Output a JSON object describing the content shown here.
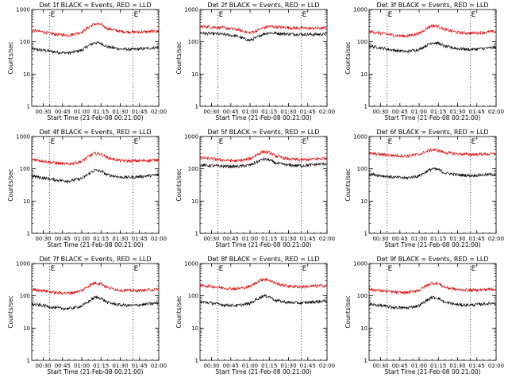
{
  "figure": {
    "background": "#ffffff",
    "series_colors": {
      "events": "#000000",
      "lld": "#dd0000"
    }
  },
  "chart_data": [
    {
      "type": "line",
      "title": "Det 1f BLACK = Events, RED = LLD",
      "xlabel": "Start Time (21-Feb-08 00:21:00)",
      "ylabel": "Counts/sec",
      "yscale": "log",
      "ylim": [
        1,
        1000
      ],
      "yticks": [
        "1",
        "10",
        "100",
        "1000"
      ],
      "xlim": [
        "00:21",
        "02:00"
      ],
      "xticks": [
        "00:30",
        "00:45",
        "01:00",
        "01:15",
        "01:30",
        "01:45",
        "02:00"
      ],
      "markers": [
        {
          "time": "00:35",
          "label": "E"
        },
        {
          "time": "01:40",
          "label": "E"
        }
      ],
      "series": [
        {
          "name": "Events",
          "color": "#000000",
          "x": [
            "00:21",
            "00:30",
            "00:40",
            "00:50",
            "01:00",
            "01:05",
            "01:10",
            "01:15",
            "01:20",
            "01:30",
            "01:40",
            "01:50",
            "02:00"
          ],
          "y": [
            60,
            55,
            48,
            45,
            55,
            75,
            95,
            90,
            70,
            60,
            58,
            62,
            68
          ]
        },
        {
          "name": "LLD",
          "color": "#dd0000",
          "x": [
            "00:21",
            "00:30",
            "00:40",
            "00:50",
            "01:00",
            "01:05",
            "01:10",
            "01:15",
            "01:20",
            "01:30",
            "01:40",
            "01:50",
            "02:00"
          ],
          "y": [
            230,
            200,
            170,
            160,
            200,
            280,
            360,
            340,
            260,
            210,
            200,
            205,
            215
          ]
        }
      ]
    },
    {
      "type": "line",
      "title": "Det 2f BLACK = Events, RED = LLD",
      "xlabel": "Start Time (21-Feb-08 00:21:00)",
      "ylabel": "Counts/sec",
      "yscale": "log",
      "ylim": [
        1,
        1000
      ],
      "yticks": [
        "1",
        "10",
        "100",
        "1000"
      ],
      "xlim": [
        "00:21",
        "02:00"
      ],
      "xticks": [
        "00:30",
        "00:45",
        "01:00",
        "01:15",
        "01:30",
        "01:45",
        "02:00"
      ],
      "markers": [
        {
          "time": "00:35",
          "label": "E"
        },
        {
          "time": "01:40",
          "label": "E"
        }
      ],
      "series": [
        {
          "name": "Events",
          "color": "#000000",
          "x": [
            "00:21",
            "00:30",
            "00:40",
            "00:50",
            "00:55",
            "01:00",
            "01:05",
            "01:10",
            "01:15",
            "01:20",
            "01:30",
            "01:40",
            "01:50",
            "02:00"
          ],
          "y": [
            185,
            180,
            170,
            150,
            125,
            110,
            135,
            175,
            190,
            185,
            175,
            170,
            170,
            172
          ]
        },
        {
          "name": "LLD",
          "color": "#dd0000",
          "x": [
            "00:21",
            "00:30",
            "00:40",
            "00:50",
            "00:55",
            "01:00",
            "01:05",
            "01:10",
            "01:15",
            "01:20",
            "01:30",
            "01:40",
            "01:50",
            "02:00"
          ],
          "y": [
            300,
            290,
            270,
            240,
            210,
            190,
            220,
            270,
            300,
            290,
            275,
            265,
            262,
            265
          ]
        }
      ]
    },
    {
      "type": "line",
      "title": "Det 3f BLACK = Events, RED = LLD",
      "xlabel": "Start Time (21-Feb-08 00:21:00)",
      "ylabel": "Counts/sec",
      "yscale": "log",
      "ylim": [
        1,
        1000
      ],
      "yticks": [
        "1",
        "10",
        "100",
        "1000"
      ],
      "xlim": [
        "00:21",
        "02:00"
      ],
      "xticks": [
        "00:30",
        "00:45",
        "01:00",
        "01:15",
        "01:30",
        "01:45",
        "02:00"
      ],
      "markers": [
        {
          "time": "00:35",
          "label": "E"
        },
        {
          "time": "01:40",
          "label": "E"
        }
      ],
      "series": [
        {
          "name": "Events",
          "color": "#000000",
          "x": [
            "00:21",
            "00:30",
            "00:40",
            "00:50",
            "01:00",
            "01:05",
            "01:10",
            "01:15",
            "01:20",
            "01:30",
            "01:40",
            "01:50",
            "02:00"
          ],
          "y": [
            75,
            65,
            55,
            50,
            58,
            75,
            95,
            90,
            72,
            62,
            58,
            62,
            68
          ]
        },
        {
          "name": "LLD",
          "color": "#dd0000",
          "x": [
            "00:21",
            "00:30",
            "00:40",
            "00:50",
            "01:00",
            "01:05",
            "01:10",
            "01:15",
            "01:20",
            "01:30",
            "01:40",
            "01:50",
            "02:00"
          ],
          "y": [
            210,
            185,
            160,
            150,
            180,
            250,
            320,
            300,
            240,
            195,
            185,
            195,
            210
          ]
        }
      ]
    },
    {
      "type": "line",
      "title": "Det 4f BLACK = Events, RED = LLD",
      "xlabel": "Start Time (21-Feb-08 00:21:00)",
      "ylabel": "Counts/sec",
      "yscale": "log",
      "ylim": [
        1,
        1000
      ],
      "yticks": [
        "1",
        "10",
        "100",
        "1000"
      ],
      "xlim": [
        "00:21",
        "02:00"
      ],
      "xticks": [
        "00:30",
        "00:45",
        "01:00",
        "01:15",
        "01:30",
        "01:45",
        "02:00"
      ],
      "markers": [
        {
          "time": "00:35",
          "label": "E"
        },
        {
          "time": "01:40",
          "label": "E"
        }
      ],
      "series": [
        {
          "name": "Events",
          "color": "#000000",
          "x": [
            "00:21",
            "00:30",
            "00:40",
            "00:50",
            "01:00",
            "01:05",
            "01:10",
            "01:15",
            "01:20",
            "01:30",
            "01:40",
            "01:50",
            "02:00"
          ],
          "y": [
            60,
            52,
            45,
            42,
            50,
            68,
            90,
            85,
            65,
            55,
            55,
            60,
            65
          ]
        },
        {
          "name": "LLD",
          "color": "#dd0000",
          "x": [
            "00:21",
            "00:30",
            "00:40",
            "00:50",
            "01:00",
            "01:05",
            "01:10",
            "01:15",
            "01:20",
            "01:30",
            "01:40",
            "01:50",
            "02:00"
          ],
          "y": [
            200,
            175,
            150,
            140,
            170,
            240,
            300,
            290,
            220,
            180,
            175,
            180,
            190
          ]
        }
      ]
    },
    {
      "type": "line",
      "title": "Det 5f BLACK = Events, RED = LLD",
      "xlabel": "Start Time (21-Feb-08 00:21:00)",
      "ylabel": "Counts/sec",
      "yscale": "log",
      "ylim": [
        1,
        1000
      ],
      "yticks": [
        "1",
        "10",
        "100",
        "1000"
      ],
      "xlim": [
        "00:21",
        "02:00"
      ],
      "xticks": [
        "00:30",
        "00:45",
        "01:00",
        "01:15",
        "01:30",
        "01:45",
        "02:00"
      ],
      "markers": [
        {
          "time": "00:35",
          "label": "E"
        },
        {
          "time": "01:40",
          "label": "E"
        }
      ],
      "series": [
        {
          "name": "Events",
          "color": "#000000",
          "x": [
            "00:21",
            "00:30",
            "00:40",
            "00:50",
            "01:00",
            "01:05",
            "01:10",
            "01:15",
            "01:20",
            "01:30",
            "01:40",
            "01:50",
            "02:00"
          ],
          "y": [
            130,
            125,
            120,
            118,
            130,
            160,
            200,
            190,
            150,
            130,
            125,
            135,
            145
          ]
        },
        {
          "name": "LLD",
          "color": "#dd0000",
          "x": [
            "00:21",
            "00:30",
            "00:40",
            "00:50",
            "01:00",
            "01:05",
            "01:10",
            "01:15",
            "01:20",
            "01:30",
            "01:40",
            "01:50",
            "02:00"
          ],
          "y": [
            220,
            205,
            185,
            175,
            205,
            270,
            340,
            320,
            250,
            200,
            190,
            200,
            215
          ]
        }
      ]
    },
    {
      "type": "line",
      "title": "Det 6f BLACK = Events, RED = LLD",
      "xlabel": "Start Time (21-Feb-08 00:21:00)",
      "ylabel": "Counts/sec",
      "yscale": "log",
      "ylim": [
        1,
        1000
      ],
      "yticks": [
        "1",
        "10",
        "100",
        "1000"
      ],
      "xlim": [
        "00:21",
        "02:00"
      ],
      "xticks": [
        "00:30",
        "00:45",
        "01:00",
        "01:15",
        "01:30",
        "01:45",
        "02:00"
      ],
      "markers": [
        {
          "time": "00:35",
          "label": "E"
        },
        {
          "time": "01:40",
          "label": "E"
        }
      ],
      "series": [
        {
          "name": "Events",
          "color": "#000000",
          "x": [
            "00:21",
            "00:30",
            "00:40",
            "00:50",
            "01:00",
            "01:05",
            "01:10",
            "01:15",
            "01:20",
            "01:30",
            "01:40",
            "01:50",
            "02:00"
          ],
          "y": [
            70,
            62,
            55,
            52,
            60,
            80,
            100,
            95,
            75,
            65,
            62,
            65,
            68
          ]
        },
        {
          "name": "LLD",
          "color": "#dd0000",
          "x": [
            "00:21",
            "00:30",
            "00:40",
            "00:50",
            "01:00",
            "01:05",
            "01:10",
            "01:15",
            "01:20",
            "01:30",
            "01:40",
            "01:50",
            "02:00"
          ],
          "y": [
            300,
            280,
            260,
            250,
            280,
            340,
            390,
            370,
            320,
            290,
            280,
            285,
            290
          ]
        }
      ]
    },
    {
      "type": "line",
      "title": "Det 7f BLACK = Events, RED = LLD",
      "xlabel": "Start Time (21-Feb-08 00:21:00)",
      "ylabel": "Counts/sec",
      "yscale": "log",
      "ylim": [
        1,
        1000
      ],
      "yticks": [
        "1",
        "10",
        "100",
        "1000"
      ],
      "xlim": [
        "00:21",
        "02:00"
      ],
      "xticks": [
        "00:30",
        "00:45",
        "01:00",
        "01:15",
        "01:30",
        "01:45",
        "02:00"
      ],
      "markers": [
        {
          "time": "00:35",
          "label": "E"
        },
        {
          "time": "01:40",
          "label": "E"
        }
      ],
      "series": [
        {
          "name": "Events",
          "color": "#000000",
          "x": [
            "00:21",
            "00:30",
            "00:40",
            "00:50",
            "01:00",
            "01:05",
            "01:10",
            "01:15",
            "01:20",
            "01:30",
            "01:40",
            "01:50",
            "02:00"
          ],
          "y": [
            55,
            50,
            42,
            40,
            48,
            65,
            90,
            85,
            62,
            52,
            50,
            55,
            60
          ]
        },
        {
          "name": "LLD",
          "color": "#dd0000",
          "x": [
            "00:21",
            "00:30",
            "00:40",
            "00:50",
            "01:00",
            "01:05",
            "01:10",
            "01:15",
            "01:20",
            "01:30",
            "01:40",
            "01:50",
            "02:00"
          ],
          "y": [
            160,
            145,
            125,
            120,
            145,
            200,
            250,
            240,
            180,
            150,
            145,
            150,
            160
          ]
        }
      ]
    },
    {
      "type": "line",
      "title": "Det 8f BLACK = Events, RED = LLD",
      "xlabel": "Start Time (21-Feb-08 00:21:00)",
      "ylabel": "Counts/sec",
      "yscale": "log",
      "ylim": [
        1,
        1000
      ],
      "yticks": [
        "1",
        "10",
        "100",
        "1000"
      ],
      "xlim": [
        "00:21",
        "02:00"
      ],
      "xticks": [
        "00:30",
        "00:45",
        "01:00",
        "01:15",
        "01:30",
        "01:45",
        "02:00"
      ],
      "markers": [
        {
          "time": "00:35",
          "label": "E"
        },
        {
          "time": "01:40",
          "label": "E"
        }
      ],
      "series": [
        {
          "name": "Events",
          "color": "#000000",
          "x": [
            "00:21",
            "00:30",
            "00:40",
            "00:50",
            "01:00",
            "01:05",
            "01:10",
            "01:15",
            "01:20",
            "01:30",
            "01:40",
            "01:50",
            "02:00"
          ],
          "y": [
            65,
            60,
            52,
            50,
            58,
            78,
            100,
            95,
            72,
            62,
            60,
            65,
            70
          ]
        },
        {
          "name": "LLD",
          "color": "#dd0000",
          "x": [
            "00:21",
            "00:30",
            "00:40",
            "00:50",
            "01:00",
            "01:05",
            "01:10",
            "01:15",
            "01:20",
            "01:30",
            "01:40",
            "01:50",
            "02:00"
          ],
          "y": [
            210,
            195,
            175,
            165,
            195,
            260,
            330,
            310,
            240,
            200,
            190,
            200,
            210
          ]
        }
      ]
    },
    {
      "type": "line",
      "title": "Det 9f BLACK = Events, RED = LLD",
      "xlabel": "Start Time (21-Feb-08 00:21:00)",
      "ylabel": "Counts/sec",
      "yscale": "log",
      "ylim": [
        1,
        1000
      ],
      "yticks": [
        "1",
        "10",
        "100",
        "1000"
      ],
      "xlim": [
        "00:21",
        "02:00"
      ],
      "xticks": [
        "00:30",
        "00:45",
        "01:00",
        "01:15",
        "01:30",
        "01:45",
        "02:00"
      ],
      "markers": [
        {
          "time": "00:35",
          "label": "E"
        },
        {
          "time": "01:40",
          "label": "E"
        }
      ],
      "series": [
        {
          "name": "Events",
          "color": "#000000",
          "x": [
            "00:21",
            "00:30",
            "00:40",
            "00:50",
            "01:00",
            "01:05",
            "01:10",
            "01:15",
            "01:20",
            "01:30",
            "01:40",
            "01:50",
            "02:00"
          ],
          "y": [
            55,
            50,
            44,
            42,
            50,
            68,
            90,
            85,
            63,
            53,
            52,
            56,
            60
          ]
        },
        {
          "name": "LLD",
          "color": "#dd0000",
          "x": [
            "00:21",
            "00:30",
            "00:40",
            "00:50",
            "01:00",
            "01:05",
            "01:10",
            "01:15",
            "01:20",
            "01:30",
            "01:40",
            "01:50",
            "02:00"
          ],
          "y": [
            160,
            145,
            130,
            125,
            150,
            200,
            250,
            240,
            185,
            155,
            150,
            155,
            165
          ]
        }
      ]
    }
  ]
}
